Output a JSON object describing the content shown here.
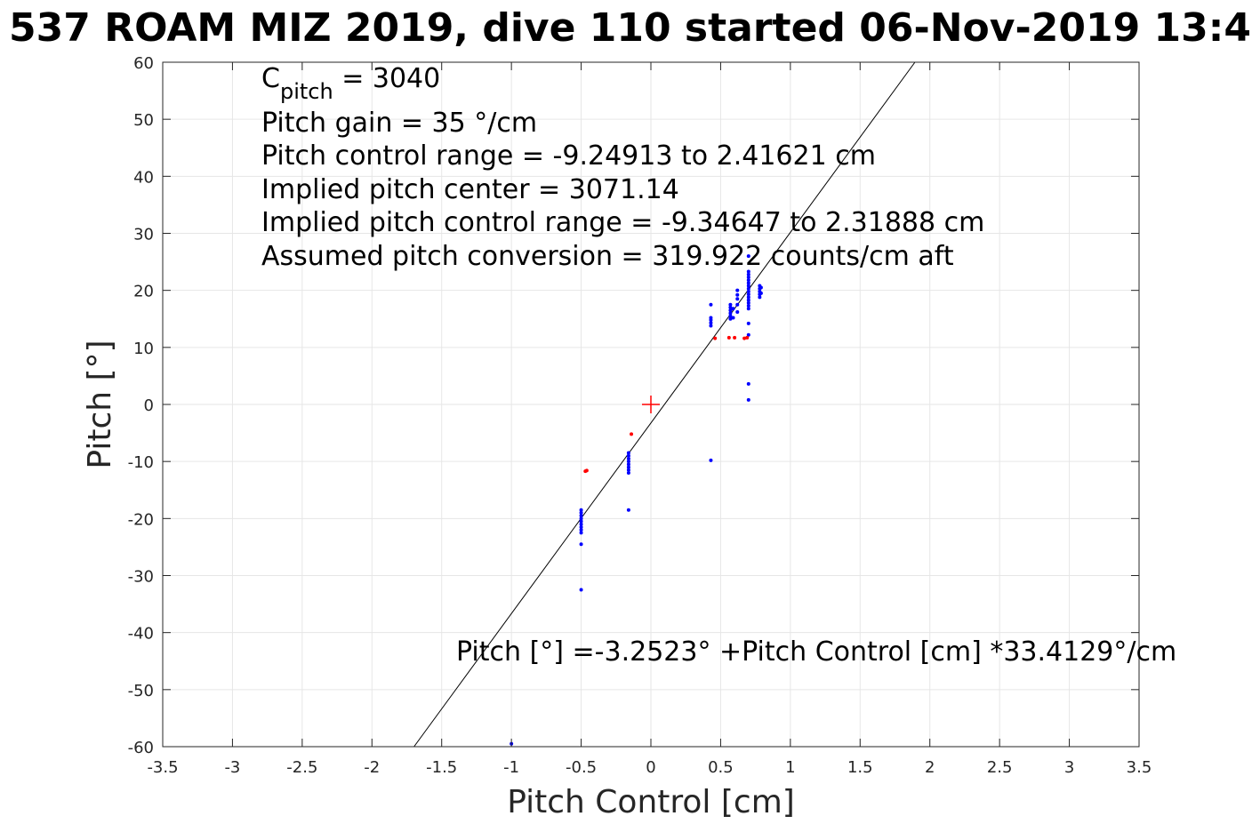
{
  "chart_data": {
    "type": "scatter",
    "title": "537 ROAM MIZ 2019, dive 110 started 06-Nov-2019 13:4",
    "xlabel": "Pitch Control [cm]",
    "ylabel": "Pitch [°]",
    "xlim": [
      -3.5,
      3.5
    ],
    "ylim": [
      -60,
      60
    ],
    "xticks": [
      -3.5,
      -3,
      -2.5,
      -2,
      -1.5,
      -1,
      -0.5,
      0,
      0.5,
      1,
      1.5,
      2,
      2.5,
      3,
      3.5
    ],
    "xtick_labels": [
      "-3.5",
      "-3",
      "-2.5",
      "-2",
      "-1.5",
      "-1",
      "-0.5",
      "0",
      "0.5",
      "1",
      "1.5",
      "2",
      "2.5",
      "3",
      "3.5"
    ],
    "yticks": [
      -60,
      -50,
      -40,
      -30,
      -20,
      -10,
      0,
      10,
      20,
      30,
      40,
      50,
      60
    ],
    "ytick_labels": [
      "-60",
      "-50",
      "-40",
      "-30",
      "-20",
      "-10",
      "0",
      "10",
      "20",
      "30",
      "40",
      "50",
      "60"
    ],
    "grid": true,
    "colors": {
      "blue": "#0000ff",
      "red": "#ff0000",
      "line": "#000000",
      "grid": "#e6e6e6",
      "axis": "#262626"
    },
    "series": [
      {
        "color": "#0000ff",
        "points": [
          [
            -1.0,
            -59.5
          ],
          [
            -0.5,
            -32.5
          ],
          [
            -0.5,
            -24.5
          ],
          [
            -0.5,
            -22.5
          ],
          [
            -0.5,
            -22.0
          ],
          [
            -0.5,
            -21.5
          ],
          [
            -0.5,
            -21.0
          ],
          [
            -0.5,
            -20.5
          ],
          [
            -0.5,
            -20.0
          ],
          [
            -0.5,
            -19.5
          ],
          [
            -0.5,
            -19.0
          ],
          [
            -0.5,
            -18.5
          ],
          [
            -0.16,
            -18.5
          ],
          [
            -0.16,
            -12.0
          ],
          [
            -0.16,
            -11.5
          ],
          [
            -0.16,
            -11.0
          ],
          [
            -0.16,
            -10.5
          ],
          [
            -0.16,
            -10.0
          ],
          [
            -0.16,
            -9.5
          ],
          [
            -0.16,
            -9.0
          ],
          [
            -0.16,
            -8.5
          ],
          [
            0.43,
            -9.8
          ],
          [
            0.43,
            13.8
          ],
          [
            0.43,
            14.3
          ],
          [
            0.43,
            14.8
          ],
          [
            0.43,
            15.2
          ],
          [
            0.43,
            17.5
          ],
          [
            0.57,
            15.0
          ],
          [
            0.57,
            15.5
          ],
          [
            0.57,
            16.0
          ],
          [
            0.57,
            16.5
          ],
          [
            0.57,
            17.0
          ],
          [
            0.57,
            17.5
          ],
          [
            0.59,
            15.2
          ],
          [
            0.59,
            16.8
          ],
          [
            0.62,
            16.2
          ],
          [
            0.62,
            17.5
          ],
          [
            0.62,
            18.5
          ],
          [
            0.62,
            19.2
          ],
          [
            0.62,
            20.0
          ],
          [
            0.7,
            0.8
          ],
          [
            0.7,
            3.6
          ],
          [
            0.7,
            12.2
          ],
          [
            0.7,
            14.2
          ],
          [
            0.7,
            16.8
          ],
          [
            0.7,
            17.3
          ],
          [
            0.7,
            17.8
          ],
          [
            0.7,
            18.3
          ],
          [
            0.7,
            18.8
          ],
          [
            0.7,
            19.3
          ],
          [
            0.7,
            19.8
          ],
          [
            0.7,
            20.3
          ],
          [
            0.7,
            20.8
          ],
          [
            0.7,
            21.3
          ],
          [
            0.7,
            21.8
          ],
          [
            0.7,
            22.3
          ],
          [
            0.7,
            22.8
          ],
          [
            0.7,
            23.3
          ],
          [
            0.7,
            26.0
          ],
          [
            0.78,
            18.8
          ],
          [
            0.78,
            19.3
          ],
          [
            0.78,
            19.8
          ],
          [
            0.78,
            20.3
          ],
          [
            0.78,
            20.8
          ],
          [
            0.79,
            19.5
          ],
          [
            0.79,
            20.5
          ]
        ]
      },
      {
        "color": "#ff0000",
        "points": [
          [
            -0.47,
            -11.7
          ],
          [
            -0.46,
            -11.6
          ],
          [
            -0.14,
            -5.2
          ],
          [
            0.46,
            11.6
          ],
          [
            0.56,
            11.7
          ],
          [
            0.6,
            11.7
          ],
          [
            0.67,
            11.6
          ],
          [
            0.69,
            11.7
          ]
        ]
      }
    ],
    "marker": {
      "shape": "plus",
      "color": "#ff0000",
      "x": 0,
      "y": 0
    },
    "fit": {
      "intercept": -3.2523,
      "slope": 33.4129
    },
    "annotations": [
      {
        "id": "c-pitch",
        "prefix": "C",
        "subscript": "pitch",
        "suffix": " = 3040"
      },
      {
        "id": "pitch-gain",
        "text": "Pitch gain = 35 °/cm"
      },
      {
        "id": "pitch-control-range",
        "text": "Pitch control range = -9.24913 to 2.41621 cm"
      },
      {
        "id": "implied-pitch-center",
        "text": "Implied pitch center = 3071.14"
      },
      {
        "id": "implied-pitch-control-range",
        "text": "Implied pitch control range = -9.34647 to 2.31888 cm"
      },
      {
        "id": "assumed-pitch-conversion",
        "text": "Assumed pitch conversion = 319.922 counts/cm aft"
      }
    ],
    "equation": "Pitch [°] =-3.2523° +Pitch Control [cm] *33.4129°/cm"
  }
}
